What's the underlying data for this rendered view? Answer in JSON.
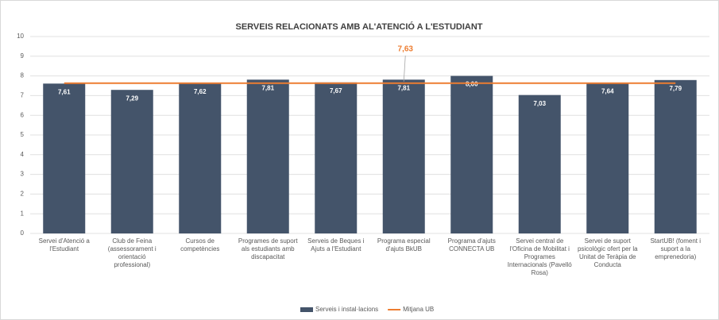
{
  "chart_data": {
    "type": "bar",
    "title": "SERVEIS RELACIONATS AMB AL'ATENCIÓ A L'ESTUDIANT",
    "categories": [
      "Servei d'Atenció a l'Estudiant",
      "Club de Feina (assessorament i orientació professional)",
      "Cursos de competències",
      "Programes de suport als estudiants amb discapacitat",
      "Serveis de Beques i Ajuts a l'Estudiant",
      "Programa especial d'ajuts BkUB",
      "Programa d'ajuts CONNECTA UB",
      "Servei central de l'Oficina de Mobilitat i Programes Internacionals (Pavelló Rosa)",
      "Servei de suport psicològic ofert per la Unitat de Teràpia de Conducta",
      "StartUB! (foment i suport a la emprenedoria)"
    ],
    "series": [
      {
        "name": "Serveis i instal·lacions",
        "type": "bar",
        "color": "#44546a",
        "values": [
          7.61,
          7.29,
          7.62,
          7.81,
          7.67,
          7.81,
          8.0,
          7.03,
          7.64,
          7.79
        ],
        "value_labels": [
          "7,61",
          "7,29",
          "7,62",
          "7,81",
          "7,67",
          "7,81",
          "8,00",
          "7,03",
          "7,64",
          "7,79"
        ]
      },
      {
        "name": "Mitjana UB",
        "type": "line",
        "color": "#ed7d31",
        "values": [
          7.63,
          7.63,
          7.63,
          7.63,
          7.63,
          7.63,
          7.63,
          7.63,
          7.63,
          7.63
        ],
        "value_labels": [
          null,
          null,
          null,
          null,
          null,
          "7,63",
          null,
          null,
          null,
          null
        ]
      }
    ],
    "ylim": [
      0,
      10
    ],
    "yticks": [
      0,
      1,
      2,
      3,
      4,
      5,
      6,
      7,
      8,
      9,
      10
    ],
    "grid": true,
    "legend": "bottom"
  }
}
